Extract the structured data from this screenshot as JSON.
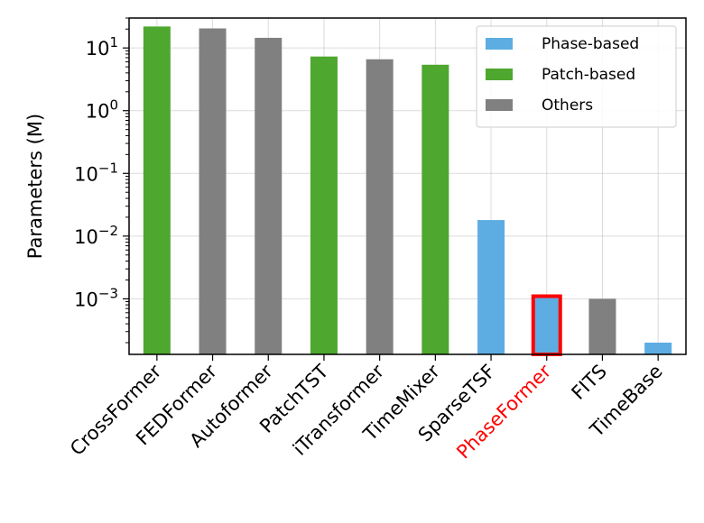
{
  "chart_data": {
    "type": "bar",
    "yscale": "log",
    "ylabel": "Parameters (M)",
    "ylim": [
      0.00013,
      30
    ],
    "grid": true,
    "legend_position": "top-right",
    "categories": [
      "CrossFormer",
      "FEDFormer",
      "Autoformer",
      "PatchTST",
      "iTransformer",
      "TimeMixer",
      "SparseTSF",
      "PhaseFormer",
      "FITS",
      "TimeBase"
    ],
    "values": [
      22.0,
      20.5,
      14.5,
      7.3,
      6.6,
      5.4,
      0.018,
      0.0011,
      0.001,
      0.0002
    ],
    "groups": [
      "Patch-based",
      "Others",
      "Others",
      "Patch-based",
      "Others",
      "Patch-based",
      "Phase-based",
      "Phase-based",
      "Others",
      "Phase-based"
    ],
    "highlight": {
      "category": "PhaseFormer",
      "color": "#ff0000"
    },
    "yticks": [
      {
        "value": 10,
        "base": "10",
        "exp": "1"
      },
      {
        "value": 1,
        "base": "10",
        "exp": "0"
      },
      {
        "value": 0.1,
        "base": "10",
        "exp": "−1"
      },
      {
        "value": 0.01,
        "base": "10",
        "exp": "−2"
      },
      {
        "value": 0.001,
        "base": "10",
        "exp": "−3"
      }
    ],
    "legend": [
      {
        "label": "Phase-based",
        "color": "#5dade2"
      },
      {
        "label": "Patch-based",
        "color": "#4ea72e"
      },
      {
        "label": "Others",
        "color": "#808080"
      }
    ]
  }
}
